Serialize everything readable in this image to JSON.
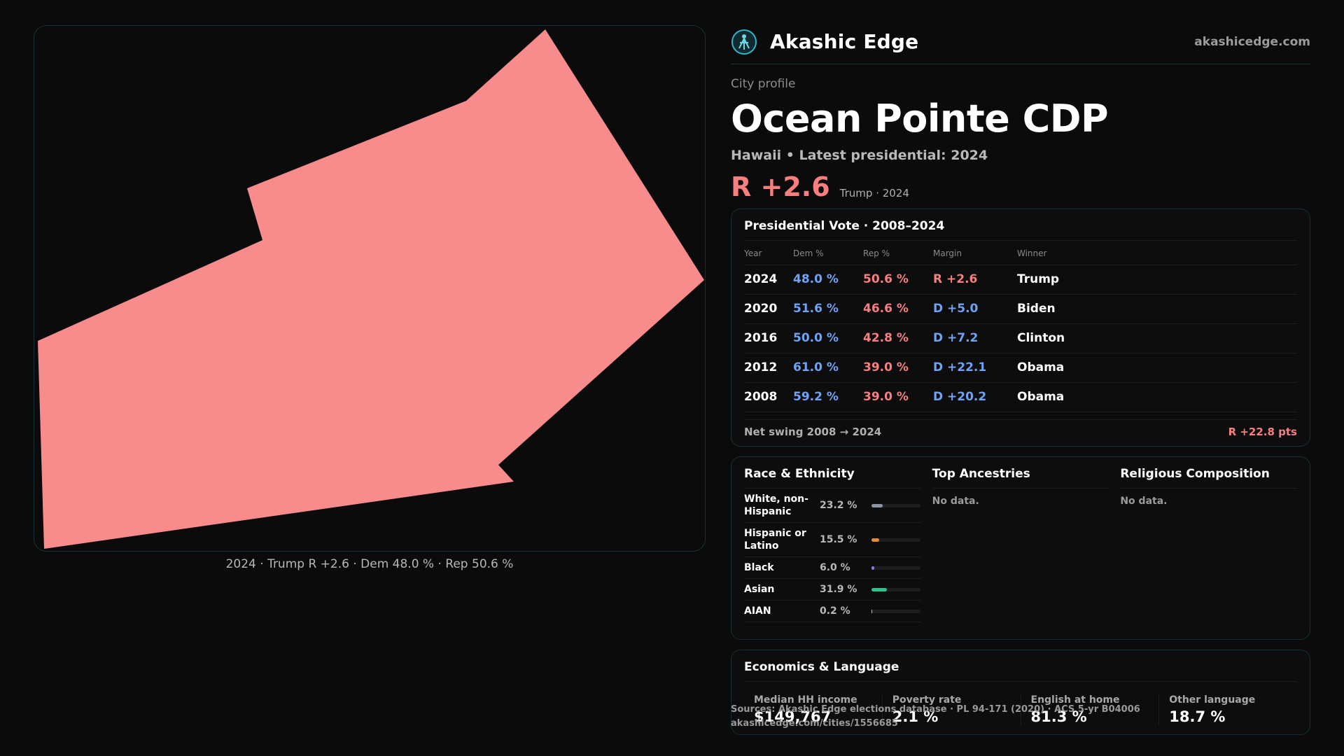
{
  "brand": {
    "name": "Akashic Edge",
    "site": "akashicedge.com"
  },
  "profile": {
    "eyebrow": "City profile",
    "title": "Ocean Pointe CDP",
    "subtitle": "Hawaii • Latest presidential: 2024",
    "margin": "R +2.6",
    "margin_note": "Trump · 2024"
  },
  "map": {
    "caption": "2024 · Trump R +2.6 · Dem 48.0 % · Rep 50.6 %",
    "fill_color": "#f88c8c"
  },
  "votes": {
    "title": "Presidential Vote · 2008–2024",
    "headers": {
      "year": "Year",
      "dem": "Dem %",
      "rep": "Rep %",
      "margin": "Margin",
      "winner": "Winner"
    },
    "rows": [
      {
        "year": "2024",
        "dem": "48.0 %",
        "rep": "50.6 %",
        "margin": "R +2.6",
        "party": "rep",
        "winner": "Trump"
      },
      {
        "year": "2020",
        "dem": "51.6 %",
        "rep": "46.6 %",
        "margin": "D +5.0",
        "party": "dem",
        "winner": "Biden"
      },
      {
        "year": "2016",
        "dem": "50.0 %",
        "rep": "42.8 %",
        "margin": "D +7.2",
        "party": "dem",
        "winner": "Clinton"
      },
      {
        "year": "2012",
        "dem": "61.0 %",
        "rep": "39.0 %",
        "margin": "D +22.1",
        "party": "dem",
        "winner": "Obama"
      },
      {
        "year": "2008",
        "dem": "59.2 %",
        "rep": "39.0 %",
        "margin": "D +20.2",
        "party": "dem",
        "winner": "Obama"
      }
    ],
    "swing_label": "Net swing 2008 → 2024",
    "swing_value": "R +22.8 pts"
  },
  "demographics": {
    "race_title": "Race & Ethnicity",
    "race": [
      {
        "name": "White, non-Hispanic",
        "pct": "23.2 %",
        "value": 23.2,
        "color": "#8a96a3"
      },
      {
        "name": "Hispanic or Latino",
        "pct": "15.5 %",
        "value": 15.5,
        "color": "#e0902f"
      },
      {
        "name": "Black",
        "pct": "6.0 %",
        "value": 6.0,
        "color": "#8a7be0"
      },
      {
        "name": "Asian",
        "pct": "31.9 %",
        "value": 31.9,
        "color": "#2fc08c"
      },
      {
        "name": "AIAN",
        "pct": "0.2 %",
        "value": 0.2,
        "color": "#c0c0c0"
      }
    ],
    "ancestry_title": "Top Ancestries",
    "ancestry_empty": "No data.",
    "religion_title": "Religious Composition",
    "religion_empty": "No data."
  },
  "economics": {
    "title": "Economics & Language",
    "cells": [
      {
        "label": "Median HH income",
        "value": "$149,767"
      },
      {
        "label": "Poverty rate",
        "value": "2.1 %"
      },
      {
        "label": "English at home",
        "value": "81.3 %"
      },
      {
        "label": "Other language",
        "value": "18.7 %"
      }
    ]
  },
  "footer": {
    "source": "Sources: Akashic Edge elections database · PL 94-171 (2020) · ACS 5-yr B04006",
    "url": "akashicedge.com/cities/1556685"
  },
  "colors": {
    "dem": "#6fa3f7",
    "rep": "#f87f7f",
    "accent": "#2fb8c8"
  }
}
